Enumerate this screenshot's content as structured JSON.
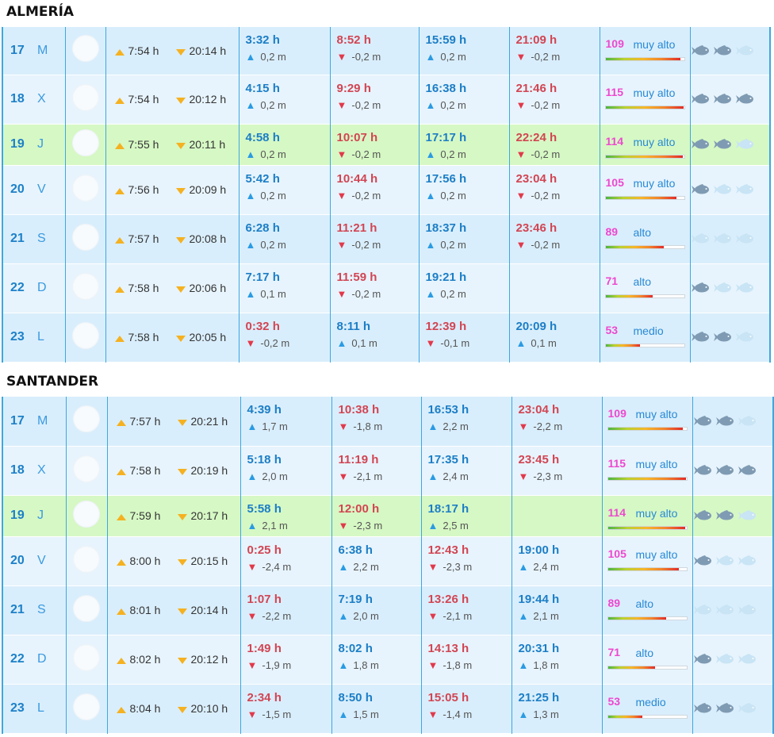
{
  "colors": {
    "fish_on": "#7f9bb3",
    "fish_off": "#c8e4f5"
  },
  "icons": {
    "sunrise": "sunrise-arrow-icon",
    "sunset": "sunset-arrow-icon",
    "rising": "rising-tide-icon",
    "falling": "falling-tide-icon",
    "fish": "fish-icon",
    "moon": "moon-phase-icon"
  },
  "sections": [
    {
      "title": "ALMERÍA",
      "rows": [
        {
          "day": "17",
          "weekday": "M",
          "sunrise": "7:54 h",
          "sunset": "20:14 h",
          "tides": [
            {
              "time": "3:32 h",
              "height": "0,2 m",
              "type": "high"
            },
            {
              "time": "8:52 h",
              "height": "-0,2 m",
              "type": "low"
            },
            {
              "time": "15:59 h",
              "height": "0,2 m",
              "type": "high"
            },
            {
              "time": "21:09 h",
              "height": "-0,2 m",
              "type": "low"
            }
          ],
          "coef": "109",
          "coef_label": "muy alto",
          "coef_pct": 95,
          "fish": 2
        },
        {
          "day": "18",
          "weekday": "X",
          "sunrise": "7:54 h",
          "sunset": "20:12 h",
          "tides": [
            {
              "time": "4:15 h",
              "height": "0,2 m",
              "type": "high"
            },
            {
              "time": "9:29 h",
              "height": "-0,2 m",
              "type": "low"
            },
            {
              "time": "16:38 h",
              "height": "0,2 m",
              "type": "high"
            },
            {
              "time": "21:46 h",
              "height": "-0,2 m",
              "type": "low"
            }
          ],
          "coef": "115",
          "coef_label": "muy alto",
          "coef_pct": 99,
          "fish": 3
        },
        {
          "day": "19",
          "weekday": "J",
          "sunrise": "7:55 h",
          "sunset": "20:11 h",
          "tides": [
            {
              "time": "4:58 h",
              "height": "0,2 m",
              "type": "high"
            },
            {
              "time": "10:07 h",
              "height": "-0,2 m",
              "type": "low"
            },
            {
              "time": "17:17 h",
              "height": "0,2 m",
              "type": "high"
            },
            {
              "time": "22:24 h",
              "height": "-0,2 m",
              "type": "low"
            }
          ],
          "coef": "114",
          "coef_label": "muy alto",
          "coef_pct": 98,
          "fish": 2,
          "today": true
        },
        {
          "day": "20",
          "weekday": "V",
          "sunrise": "7:56 h",
          "sunset": "20:09 h",
          "tides": [
            {
              "time": "5:42 h",
              "height": "0,2 m",
              "type": "high"
            },
            {
              "time": "10:44 h",
              "height": "-0,2 m",
              "type": "low"
            },
            {
              "time": "17:56 h",
              "height": "0,2 m",
              "type": "high"
            },
            {
              "time": "23:04 h",
              "height": "-0,2 m",
              "type": "low"
            }
          ],
          "coef": "105",
          "coef_label": "muy alto",
          "coef_pct": 90,
          "fish": 1
        },
        {
          "day": "21",
          "weekday": "S",
          "sunrise": "7:57 h",
          "sunset": "20:08 h",
          "tides": [
            {
              "time": "6:28 h",
              "height": "0,2 m",
              "type": "high"
            },
            {
              "time": "11:21 h",
              "height": "-0,2 m",
              "type": "low"
            },
            {
              "time": "18:37 h",
              "height": "0,2 m",
              "type": "high"
            },
            {
              "time": "23:46 h",
              "height": "-0,2 m",
              "type": "low"
            }
          ],
          "coef": "89",
          "coef_label": "alto",
          "coef_pct": 74,
          "fish": 0
        },
        {
          "day": "22",
          "weekday": "D",
          "sunrise": "7:58 h",
          "sunset": "20:06 h",
          "tides": [
            {
              "time": "7:17 h",
              "height": "0,1 m",
              "type": "high"
            },
            {
              "time": "11:59 h",
              "height": "-0,2 m",
              "type": "low"
            },
            {
              "time": "19:21 h",
              "height": "0,2 m",
              "type": "high"
            }
          ],
          "coef": "71",
          "coef_label": "alto",
          "coef_pct": 60,
          "fish": 1
        },
        {
          "day": "23",
          "weekday": "L",
          "sunrise": "7:58 h",
          "sunset": "20:05 h",
          "tides": [
            {
              "time": "0:32 h",
              "height": "-0,2 m",
              "type": "low"
            },
            {
              "time": "8:11 h",
              "height": "0,1 m",
              "type": "high"
            },
            {
              "time": "12:39 h",
              "height": "-0,1 m",
              "type": "low"
            },
            {
              "time": "20:09 h",
              "height": "0,1 m",
              "type": "high"
            }
          ],
          "coef": "53",
          "coef_label": "medio",
          "coef_pct": 44,
          "fish": 2
        }
      ]
    },
    {
      "title": "SANTANDER",
      "rows": [
        {
          "day": "17",
          "weekday": "M",
          "sunrise": "7:57 h",
          "sunset": "20:21 h",
          "tides": [
            {
              "time": "4:39 h",
              "height": "1,7 m",
              "type": "high"
            },
            {
              "time": "10:38 h",
              "height": "-1,8 m",
              "type": "low"
            },
            {
              "time": "16:53 h",
              "height": "2,2 m",
              "type": "high"
            },
            {
              "time": "23:04 h",
              "height": "-2,2 m",
              "type": "low"
            }
          ],
          "coef": "109",
          "coef_label": "muy alto",
          "coef_pct": 95,
          "fish": 2
        },
        {
          "day": "18",
          "weekday": "X",
          "sunrise": "7:58 h",
          "sunset": "20:19 h",
          "tides": [
            {
              "time": "5:18 h",
              "height": "2,0 m",
              "type": "high"
            },
            {
              "time": "11:19 h",
              "height": "-2,1 m",
              "type": "low"
            },
            {
              "time": "17:35 h",
              "height": "2,4 m",
              "type": "high"
            },
            {
              "time": "23:45 h",
              "height": "-2,3 m",
              "type": "low"
            }
          ],
          "coef": "115",
          "coef_label": "muy alto",
          "coef_pct": 99,
          "fish": 3
        },
        {
          "day": "19",
          "weekday": "J",
          "sunrise": "7:59 h",
          "sunset": "20:17 h",
          "tides": [
            {
              "time": "5:58 h",
              "height": "2,1 m",
              "type": "high"
            },
            {
              "time": "12:00 h",
              "height": "-2,3 m",
              "type": "low"
            },
            {
              "time": "18:17 h",
              "height": "2,5 m",
              "type": "high"
            }
          ],
          "coef": "114",
          "coef_label": "muy alto",
          "coef_pct": 98,
          "fish": 2,
          "today": true
        },
        {
          "day": "20",
          "weekday": "V",
          "sunrise": "8:00 h",
          "sunset": "20:15 h",
          "tides": [
            {
              "time": "0:25 h",
              "height": "-2,4 m",
              "type": "low"
            },
            {
              "time": "6:38 h",
              "height": "2,2 m",
              "type": "high"
            },
            {
              "time": "12:43 h",
              "height": "-2,3 m",
              "type": "low"
            },
            {
              "time": "19:00 h",
              "height": "2,4 m",
              "type": "high"
            }
          ],
          "coef": "105",
          "coef_label": "muy alto",
          "coef_pct": 90,
          "fish": 1
        },
        {
          "day": "21",
          "weekday": "S",
          "sunrise": "8:01 h",
          "sunset": "20:14 h",
          "tides": [
            {
              "time": "1:07 h",
              "height": "-2,2 m",
              "type": "low"
            },
            {
              "time": "7:19 h",
              "height": "2,0 m",
              "type": "high"
            },
            {
              "time": "13:26 h",
              "height": "-2,1 m",
              "type": "low"
            },
            {
              "time": "19:44 h",
              "height": "2,1 m",
              "type": "high"
            }
          ],
          "coef": "89",
          "coef_label": "alto",
          "coef_pct": 74,
          "fish": 0
        },
        {
          "day": "22",
          "weekday": "D",
          "sunrise": "8:02 h",
          "sunset": "20:12 h",
          "tides": [
            {
              "time": "1:49 h",
              "height": "-1,9 m",
              "type": "low"
            },
            {
              "time": "8:02 h",
              "height": "1,8 m",
              "type": "high"
            },
            {
              "time": "14:13 h",
              "height": "-1,8 m",
              "type": "low"
            },
            {
              "time": "20:31 h",
              "height": "1,8 m",
              "type": "high"
            }
          ],
          "coef": "71",
          "coef_label": "alto",
          "coef_pct": 60,
          "fish": 1
        },
        {
          "day": "23",
          "weekday": "L",
          "sunrise": "8:04 h",
          "sunset": "20:10 h",
          "tides": [
            {
              "time": "2:34 h",
              "height": "-1,5 m",
              "type": "low"
            },
            {
              "time": "8:50 h",
              "height": "1,5 m",
              "type": "high"
            },
            {
              "time": "15:05 h",
              "height": "-1,4 m",
              "type": "low"
            },
            {
              "time": "21:25 h",
              "height": "1,3 m",
              "type": "high"
            }
          ],
          "coef": "53",
          "coef_label": "medio",
          "coef_pct": 44,
          "fish": 2
        }
      ]
    }
  ]
}
